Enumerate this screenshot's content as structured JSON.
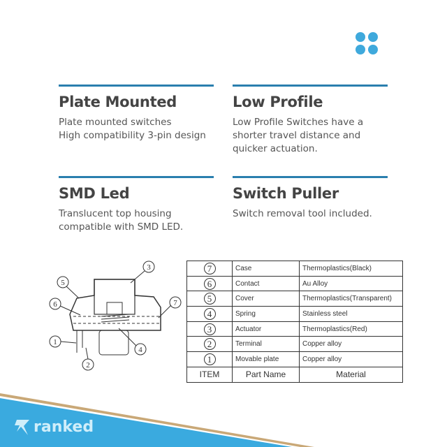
{
  "features": [
    {
      "title": "Plate Mounted",
      "desc": "Plate mounted switches\nHigh compatibility 3-pin design"
    },
    {
      "title": "Low Profile",
      "desc": "Low Profile Switches have a\nshorter travel distance and\nquicker actuation."
    },
    {
      "title": "SMD Led",
      "desc": "Translucent top housing\ncompatible with SMD LED."
    },
    {
      "title": "Switch Puller",
      "desc": "Switch removal tool included."
    }
  ],
  "diagram": {
    "labels": [
      "1",
      "2",
      "3",
      "4",
      "5",
      "6",
      "7"
    ]
  },
  "table": {
    "rows": [
      {
        "item": "7",
        "part": "Case",
        "material": "Thermoplastics(Black)"
      },
      {
        "item": "6",
        "part": "Contact",
        "material": "Au Alloy"
      },
      {
        "item": "5",
        "part": "Cover",
        "material": "Thermoplastics(Transparent)"
      },
      {
        "item": "4",
        "part": "Spring",
        "material": "Stainless steel"
      },
      {
        "item": "3",
        "part": "Actuator",
        "material": "Thermoplastics(Red)"
      },
      {
        "item": "2",
        "part": "Terminal",
        "material": "Copper alloy"
      },
      {
        "item": "1",
        "part": "Movable plate",
        "material": "Copper alloy"
      }
    ],
    "headers": [
      "ITEM",
      "Part Name",
      "Material"
    ]
  },
  "brand": {
    "name": "ranked"
  },
  "colors": {
    "accent": "#3fa9dc",
    "rule": "#2a7fae",
    "gold": "#c9a877"
  }
}
